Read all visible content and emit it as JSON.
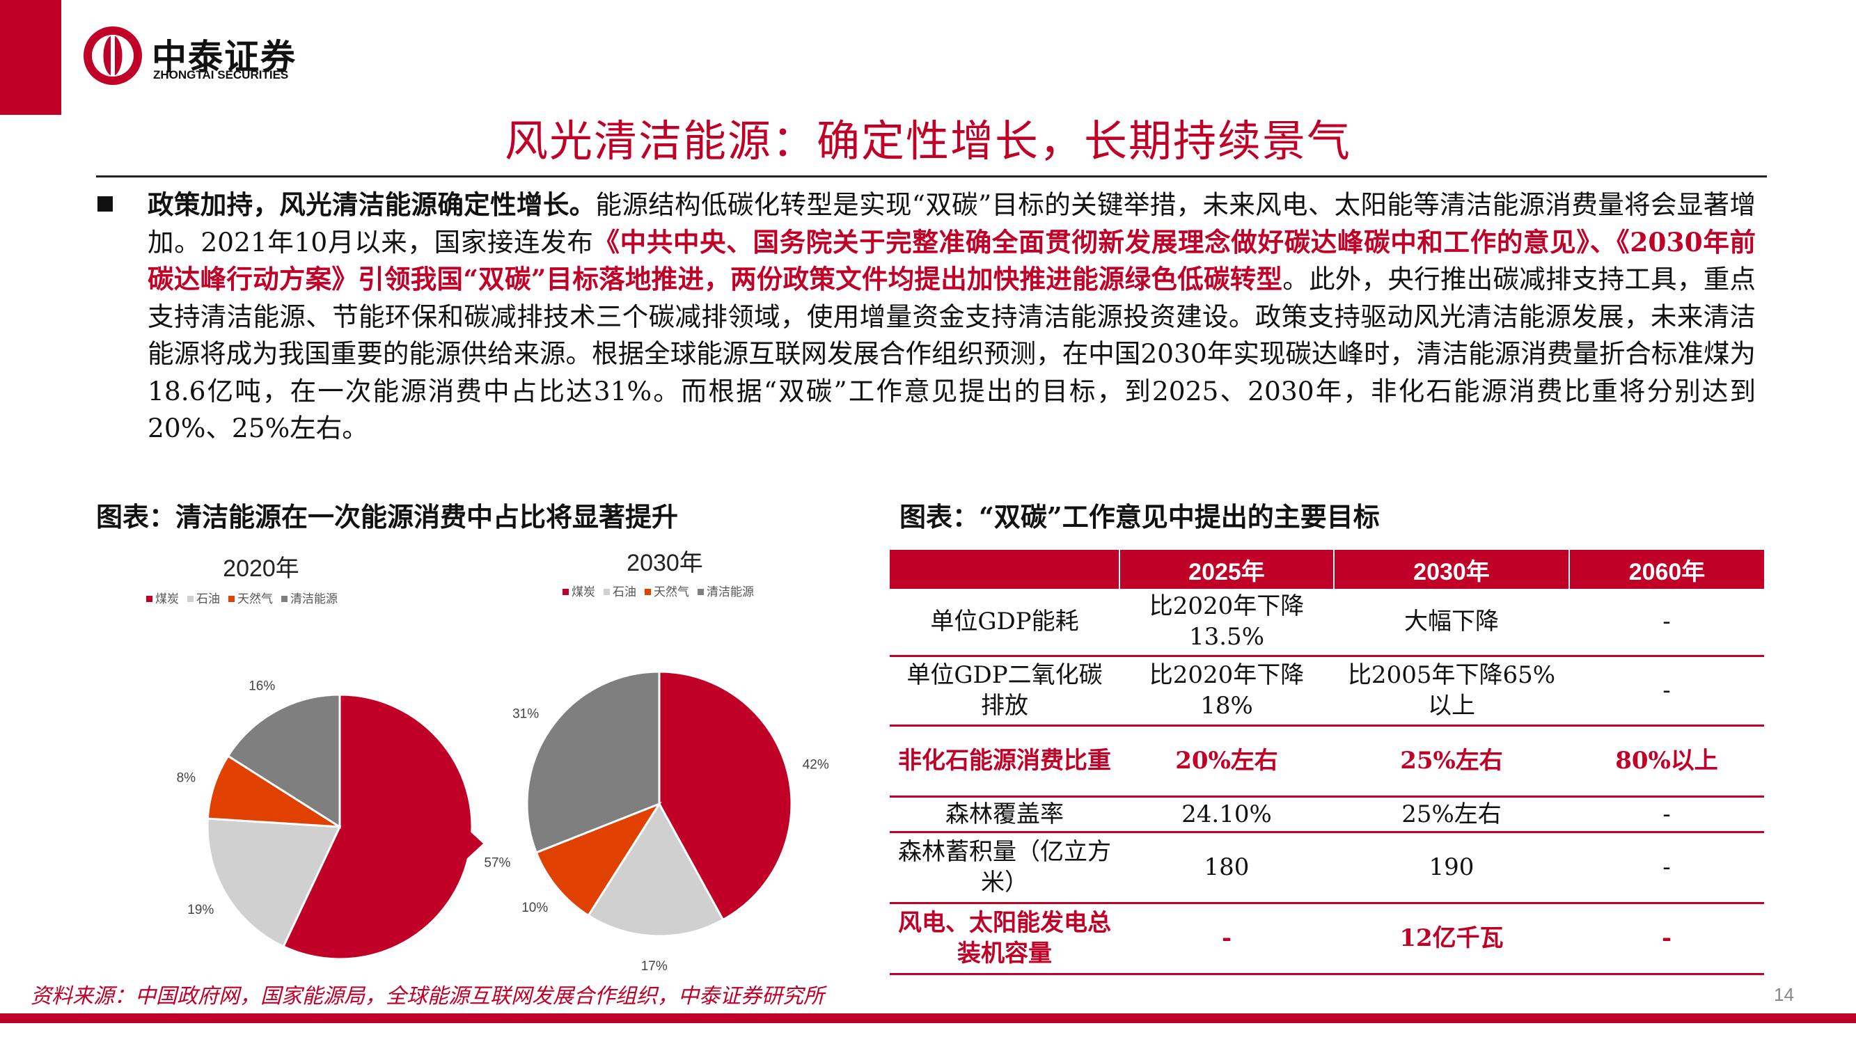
{
  "brand": {
    "name_cn": "中泰证券",
    "name_en": "ZHONGTAI SECURITIES",
    "color": "#c00027"
  },
  "page": {
    "title": "风光清洁能源：确定性增长，长期持续景气",
    "number": "14",
    "source": "资料来源：中国政府网，国家能源局，全球能源互联网发展合作组织，中泰证券研究所"
  },
  "body": {
    "lead": "政策加持，风光清洁能源确定性增长。",
    "p1": "能源结构低碳化转型是实现“双碳”目标的关键举措，未来风电、太阳能等清洁能源消费量将会显著增加。2021年10月以来，国家接连发布",
    "hl1": "《中共中央、国务院关于完整准确全面贯彻新发展理念做好碳达峰碳中和工作的意见》、《2030年前碳达峰行动方案》引领我国“双碳”目标落地推进，两份政策文件均提出加快推进能源绿色低碳转型",
    "p2": "。此外，央行推出碳减排支持工具，重点支持清洁能源、节能环保和碳减排技术三个碳减排领域，使用增量资金支持清洁能源投资建设。政策支持驱动风光清洁能源发展，未来清洁能源将成为我国重要的能源供给来源。根据全球能源互联网发展合作组织预测，在中国2030年实现碳达峰时，清洁能源消费量折合标准煤为18.6亿吨，在一次能源消费中占比达31%。而根据“双碳”工作意见提出的目标，到2025、2030年，非化石能源消费比重将分别达到20%、25%左右。"
  },
  "captions": {
    "chart": "图表：清洁能源在一次能源消费中占比将显著提升",
    "table": "图表：“双碳”工作意见中提出的主要目标"
  },
  "chart_data": [
    {
      "type": "pie",
      "title": "2020年",
      "categories": [
        "煤炭",
        "石油",
        "天然气",
        "清洁能源"
      ],
      "values": [
        57,
        19,
        8,
        16
      ],
      "labels": [
        "57%",
        "19%",
        "8%",
        "16%"
      ],
      "colors": [
        "#c00027",
        "#d0d0d0",
        "#e04000",
        "#7f7f7f"
      ],
      "legend": "top"
    },
    {
      "type": "pie",
      "title": "2030年",
      "categories": [
        "煤炭",
        "石油",
        "天然气",
        "清洁能源"
      ],
      "values": [
        42,
        17,
        10,
        31
      ],
      "labels": [
        "42%",
        "17%",
        "10%",
        "31%"
      ],
      "colors": [
        "#c00027",
        "#d0d0d0",
        "#e04000",
        "#7f7f7f"
      ],
      "legend": "top"
    }
  ],
  "table": {
    "headers": [
      "",
      "2025年",
      "2030年",
      "2060年"
    ],
    "rows": [
      {
        "label": "单位GDP能耗",
        "c1": "比2020年下降13.5%",
        "c2": "大幅下降",
        "c3": "-",
        "hl": false
      },
      {
        "label": "单位GDP二氧化碳排放",
        "c1": "比2020年下降18%",
        "c2": "比2005年下降65%以上",
        "c3": "-",
        "hl": false
      },
      {
        "label": "非化石能源消费比重",
        "c1": "20%左右",
        "c2": "25%左右",
        "c3": "80%以上",
        "hl": true
      },
      {
        "label": "森林覆盖率",
        "c1": "24.10%",
        "c2": "25%左右",
        "c3": "-",
        "hl": false
      },
      {
        "label": "森林蓄积量（亿立方米）",
        "c1": "180",
        "c2": "190",
        "c3": "-",
        "hl": false
      },
      {
        "label": "风电、太阳能发电总装机容量",
        "c1": "-",
        "c2": "12亿千瓦",
        "c3": "-",
        "hl": true
      }
    ]
  }
}
